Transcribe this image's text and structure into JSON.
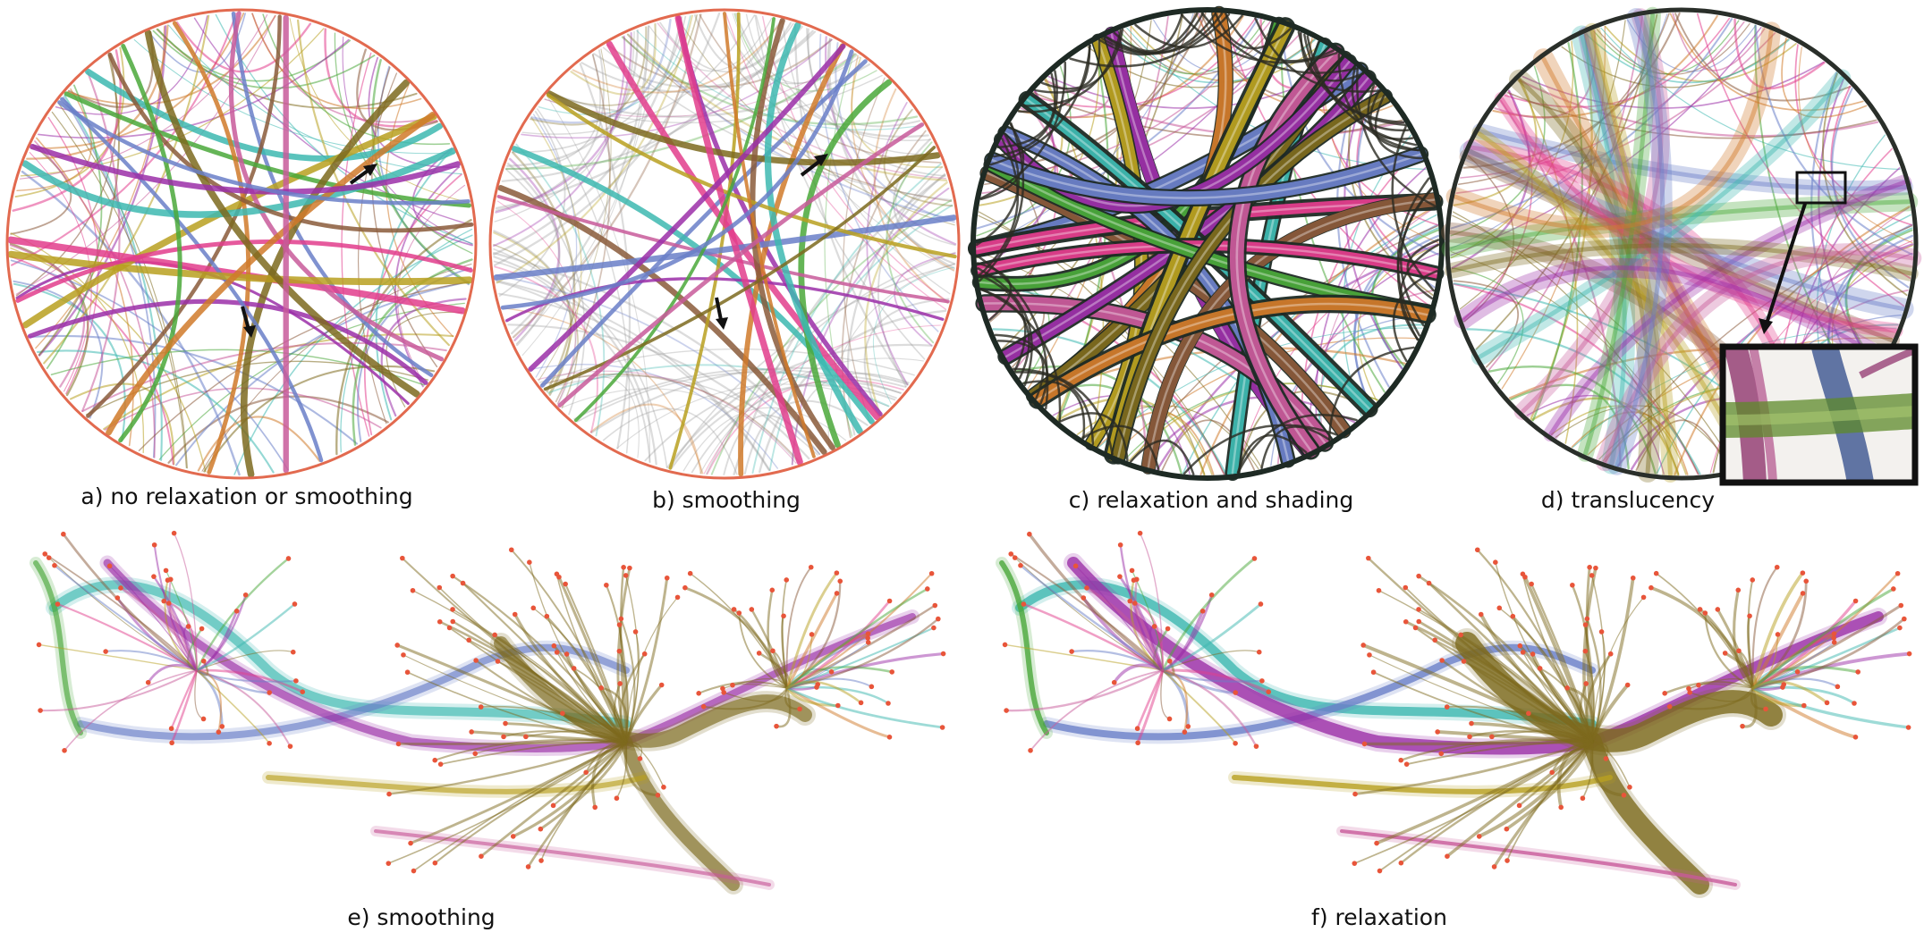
{
  "panels": {
    "a": {
      "caption": "a) no relaxation or smoothing"
    },
    "b": {
      "caption": "b) smoothing"
    },
    "c": {
      "caption": "c) relaxation and shading"
    },
    "d": {
      "caption": "d) translucency"
    },
    "e": {
      "caption": "e) smoothing"
    },
    "f": {
      "caption": "f) relaxation"
    }
  },
  "colors": {
    "node": "#e8553a",
    "ring": "#e26a4f",
    "arrow": "#111111",
    "inset_border": "#111111",
    "bundles": [
      "#9b2fa8",
      "#6a7fc8",
      "#3db8b0",
      "#8a5a3a",
      "#b8a020",
      "#e23d8c",
      "#4aa83a",
      "#d07a2a",
      "#7d6a1e",
      "#c85a9a"
    ]
  }
}
